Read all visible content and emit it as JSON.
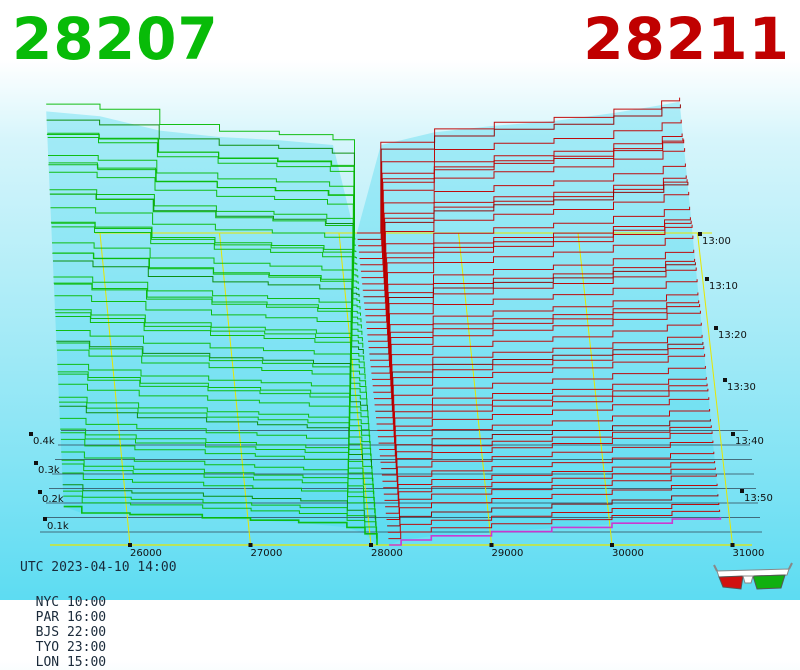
{
  "header": {
    "bid": "28207",
    "ask": "28211"
  },
  "colors": {
    "bid": "#08bb08",
    "ask": "#c00000",
    "grid": "#e6e600",
    "highlight": "#d030d0"
  },
  "chart_data": {
    "type": "area",
    "title": "",
    "x_ticks": [
      "26000",
      "27000",
      "28000",
      "29000",
      "30000",
      "31000"
    ],
    "depth_ticks": [
      "0.1k",
      "0.2k",
      "0.3k",
      "0.4k"
    ],
    "time_ticks": [
      "13:00",
      "13:10",
      "13:20",
      "13:30",
      "13:40",
      "13:50"
    ],
    "xlim": [
      25400,
      31200
    ],
    "depth_max": 0.45,
    "mid_price": 28209,
    "bid_depth_front": [
      [
        25450,
        0.24
      ],
      [
        25600,
        0.2
      ],
      [
        26000,
        0.19
      ],
      [
        26600,
        0.17
      ],
      [
        27000,
        0.155
      ],
      [
        27400,
        0.14
      ],
      [
        27800,
        0.11
      ],
      [
        27950,
        0.07
      ],
      [
        28050,
        0.0
      ]
    ],
    "ask_depth_front": [
      [
        28150,
        0.0
      ],
      [
        28250,
        0.03
      ],
      [
        28500,
        0.055
      ],
      [
        29000,
        0.08
      ],
      [
        29500,
        0.105
      ],
      [
        30000,
        0.13
      ],
      [
        30500,
        0.155
      ],
      [
        30900,
        0.165
      ]
    ],
    "bid_depth_back": [
      [
        25550,
        0.76
      ],
      [
        26000,
        0.73
      ],
      [
        26500,
        0.64
      ],
      [
        27000,
        0.6
      ],
      [
        27500,
        0.58
      ],
      [
        27950,
        0.55
      ],
      [
        28130,
        0.0
      ]
    ],
    "ask_depth_back": [
      [
        28150,
        0.0
      ],
      [
        28350,
        0.55
      ],
      [
        28800,
        0.63
      ],
      [
        29300,
        0.67
      ],
      [
        29800,
        0.7
      ],
      [
        30300,
        0.75
      ],
      [
        30700,
        0.8
      ],
      [
        30850,
        0.82
      ]
    ],
    "snapshots": 50
  },
  "footer": {
    "utc": "UTC 2023-04-10 14:00",
    "zones": [
      "NYC 10:00",
      "PAR 16:00",
      "BJS 22:00",
      "TYO 23:00",
      "LON 15:00"
    ]
  }
}
